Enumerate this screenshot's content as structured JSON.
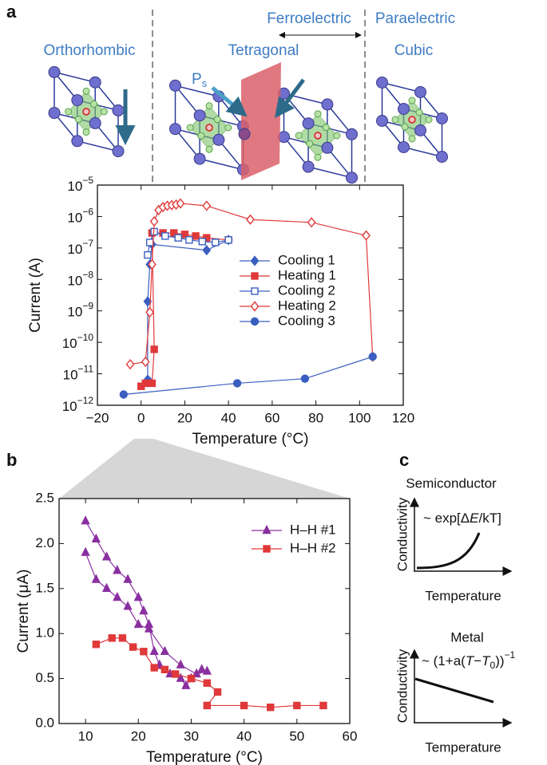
{
  "panel_labels": [
    "a",
    "b",
    "c"
  ],
  "phases": {
    "ferroelectric": "Ferroelectric",
    "paraelectric": "Paraelectric",
    "orthorhombic": "Orthorhombic",
    "tetragonal": "Tetragonal",
    "cubic": "Cubic",
    "polarization": [
      "P",
      "s"
    ]
  },
  "chart_data": [
    {
      "type": "line",
      "xlabel": "Temperature (°C)",
      "ylabel": "Current (A)",
      "log_y": true,
      "xlim": [
        -20,
        120
      ],
      "xticks": [
        {
          "value": -20,
          "label": "−20"
        },
        0,
        20,
        40,
        60,
        80,
        100,
        120
      ],
      "ylim": [
        1e-12,
        1e-05
      ],
      "yticks": [
        {
          "value": 1e-12,
          "label": "10",
          "exponent": "−12"
        },
        {
          "value": 1e-11,
          "label": "10",
          "exponent": "−11"
        },
        {
          "value": 1e-10,
          "label": "10",
          "exponent": "−10"
        },
        {
          "value": 1e-09,
          "label": "10",
          "exponent": "−9"
        },
        {
          "value": 1e-08,
          "label": "10",
          "exponent": "−8"
        },
        {
          "value": 1e-07,
          "label": "10",
          "exponent": "−7"
        },
        {
          "value": 1e-06,
          "label": "10",
          "exponent": "−6"
        },
        {
          "value": 1e-05,
          "label": "10",
          "exponent": "−5"
        }
      ],
      "legend": "center right",
      "series": [
        {
          "name": "Cooling 1",
          "color": "#3b5fc0",
          "marker": "diamond",
          "filled": true,
          "x": [
            40,
            30,
            5,
            4,
            3,
            3,
            4
          ],
          "values": [
            1.8e-07,
            8.5e-08,
            1.3e-07,
            3e-08,
            2e-09,
            6.5e-12,
            5.5e-12
          ]
        },
        {
          "name": "Heating 1",
          "color": "#e0393a",
          "marker": "square",
          "filled": true,
          "x": [
            0,
            2,
            5,
            6,
            5,
            10,
            15,
            20,
            25,
            30,
            40
          ],
          "values": [
            4e-12,
            5e-12,
            5e-12,
            6e-11,
            3e-07,
            3e-07,
            3e-07,
            2.7e-07,
            2.4e-07,
            2.1e-07,
            1.8e-07
          ]
        },
        {
          "name": "Cooling 2",
          "color": "#3b5fc0",
          "marker": "square",
          "filled": false,
          "x": [
            40,
            34,
            28,
            22,
            17,
            11,
            6,
            4,
            3
          ],
          "values": [
            1.8e-07,
            1.5e-07,
            1.6e-07,
            1.8e-07,
            2.1e-07,
            2.4e-07,
            3.3e-07,
            1.5e-07,
            6e-08
          ]
        },
        {
          "name": "Heating 2",
          "color": "#e0393a",
          "marker": "diamond",
          "filled": false,
          "x": [
            -5,
            2,
            4,
            5,
            6,
            8,
            10,
            12,
            14,
            16,
            18,
            30,
            50,
            78,
            103,
            106
          ],
          "values": [
            2e-11,
            2.4e-11,
            9e-10,
            3e-08,
            7e-07,
            1.6e-06,
            2e-06,
            2.2e-06,
            2.3e-06,
            2.4e-06,
            2.6e-06,
            2.2e-06,
            8e-07,
            6.5e-07,
            2.5e-07,
            3.5e-11
          ]
        },
        {
          "name": "Cooling 3",
          "color": "#3b5fc0",
          "marker": "circle",
          "filled": true,
          "x": [
            106,
            75,
            44,
            -8
          ],
          "values": [
            3.5e-11,
            7e-12,
            5e-12,
            2.2e-12
          ]
        }
      ]
    },
    {
      "type": "line",
      "xlabel": "Temperature (°C)",
      "ylabel": "Current (μA)",
      "log_y": false,
      "xlim": [
        5,
        60
      ],
      "xticks": [
        10,
        20,
        30,
        40,
        50,
        60
      ],
      "ylim": [
        0,
        2.5
      ],
      "yticks": [
        {
          "value": 0,
          "label": "0.0"
        },
        0.5,
        {
          "value": 1,
          "label": "1.0"
        },
        1.5,
        {
          "value": 2,
          "label": "2.0"
        },
        2.5
      ],
      "legend": "upper right",
      "series": [
        {
          "name": "H–H #1",
          "color": "#8a2fa0",
          "marker": "triangle",
          "filled": true,
          "x": [
            10,
            12,
            14,
            16,
            18,
            20,
            21,
            22,
            23,
            24,
            26,
            28,
            29,
            30,
            31,
            32,
            33,
            31,
            28,
            25,
            22,
            20,
            18,
            16,
            14,
            12,
            10
          ],
          "values": [
            2.25,
            2.05,
            1.85,
            1.7,
            1.6,
            1.4,
            1.25,
            1.1,
            0.8,
            0.65,
            0.55,
            0.5,
            0.42,
            0.5,
            0.55,
            0.6,
            0.58,
            0.55,
            0.65,
            0.8,
            1.05,
            1.1,
            1.3,
            1.4,
            1.5,
            1.6,
            1.9
          ]
        },
        {
          "name": "H–H #2",
          "color": "#e0393a",
          "marker": "square",
          "filled": true,
          "x": [
            12,
            15,
            17,
            19,
            21,
            23,
            25,
            27,
            30,
            33,
            35,
            33,
            40,
            45,
            50,
            55
          ],
          "values": [
            0.88,
            0.95,
            0.95,
            0.85,
            0.8,
            0.62,
            0.6,
            0.55,
            0.5,
            0.45,
            0.35,
            0.2,
            0.2,
            0.18,
            0.2,
            0.2
          ]
        }
      ]
    }
  ],
  "panel_c": {
    "semiconductor": "Semiconductor",
    "semi_formula": [
      "~ exp[Δ",
      "E",
      "/kT]"
    ],
    "metal": "Metal",
    "metal_formula": [
      "~ (1+a(",
      "T",
      "−",
      "T",
      "0",
      "))",
      "−1"
    ],
    "ylabel": "Conductivity",
    "xlabel": "Temperature"
  }
}
